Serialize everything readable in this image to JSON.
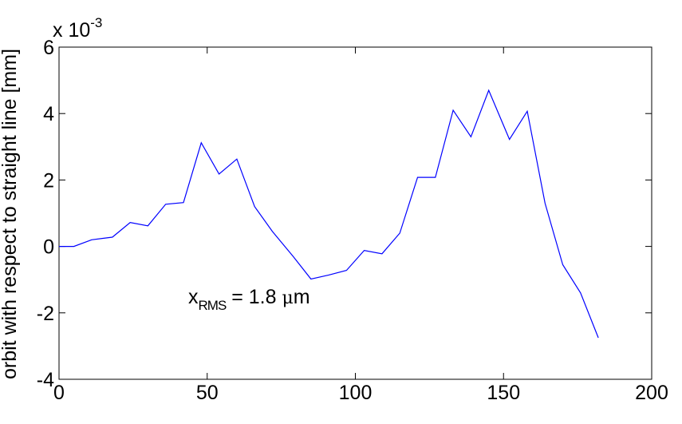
{
  "chart_data": {
    "type": "line",
    "title": "",
    "xlabel": "",
    "ylabel": "orbit with respect to straight line [mm]",
    "xlim": [
      0,
      200
    ],
    "ylim": [
      -4,
      6
    ],
    "xticks": [
      0,
      50,
      100,
      150,
      200
    ],
    "yticks": [
      -4,
      -2,
      0,
      2,
      4,
      6
    ],
    "xtick_labels": [
      "0",
      "50",
      "100",
      "150",
      "200"
    ],
    "ytick_labels": [
      "-4",
      "-2",
      "0",
      "2",
      "4",
      "6"
    ],
    "y_multiplier": {
      "base": "x 10",
      "exponent": "-3"
    },
    "grid": false,
    "legend": "none",
    "line_color": "#0000ff",
    "annotation": {
      "main": "x",
      "sub": "RMS",
      "rest": " = 1.8 ",
      "mu": "μ",
      "unit": "m"
    },
    "series": [
      {
        "x": [
          0,
          5,
          11,
          18,
          24,
          30,
          36,
          42,
          48,
          54,
          60,
          66,
          72,
          79,
          85,
          91,
          97,
          103,
          109,
          115,
          121,
          127,
          133,
          139,
          145,
          152,
          158,
          164,
          170,
          176,
          182
        ],
        "y": [
          0.0,
          0.0,
          0.2,
          0.28,
          0.72,
          0.62,
          1.27,
          1.32,
          3.12,
          2.18,
          2.63,
          1.2,
          0.45,
          -0.3,
          -0.98,
          -0.86,
          -0.72,
          -0.12,
          -0.22,
          0.4,
          2.08,
          2.08,
          4.1,
          3.3,
          4.7,
          3.22,
          4.07,
          1.3,
          -0.55,
          -1.4,
          -2.75
        ]
      }
    ]
  }
}
